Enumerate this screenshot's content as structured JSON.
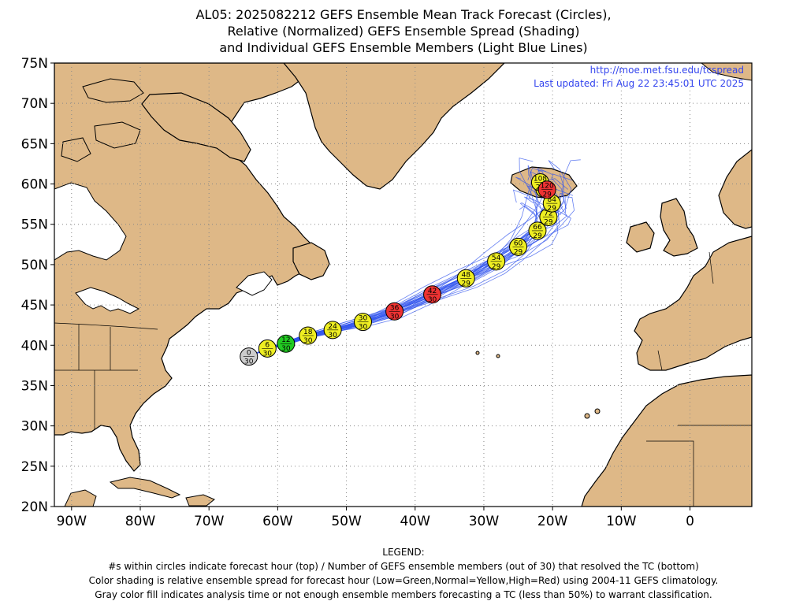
{
  "title": {
    "line1": "AL05: 2025082212 GEFS Ensemble Mean Track Forecast (Circles),",
    "line2": "Relative (Normalized) GEFS Ensemble Spread (Shading)",
    "line3": "and Individual GEFS Ensemble Members (Light Blue Lines)"
  },
  "credit": {
    "url": "http://moe.met.fsu.edu/tcspread",
    "updated": "Last updated: Fri Aug 22 23:45:01 UTC 2025"
  },
  "axes": {
    "lat_labels": [
      "75N",
      "70N",
      "65N",
      "60N",
      "55N",
      "50N",
      "45N",
      "40N",
      "35N",
      "30N",
      "25N",
      "20N"
    ],
    "lat_values": [
      75,
      70,
      65,
      60,
      55,
      50,
      45,
      40,
      35,
      30,
      25,
      20
    ],
    "lon_labels": [
      "90W",
      "80W",
      "70W",
      "60W",
      "50W",
      "40W",
      "30W",
      "20W",
      "10W",
      "0"
    ],
    "lon_values": [
      -90,
      -80,
      -70,
      -60,
      -50,
      -40,
      -30,
      -20,
      -10,
      0
    ],
    "lon_range": [
      -92.5,
      9
    ],
    "lat_range": [
      20,
      75
    ],
    "grid": true
  },
  "colors": {
    "land": "#deb887",
    "ocean": "#ffffff",
    "member_tracks": "#3355ee",
    "spread_low": "#22cc22",
    "spread_normal": "#eeee22",
    "spread_high": "#ee3333",
    "analysis_gray": "#cccccc"
  },
  "forecast_points": [
    {
      "hour": "0",
      "members": "30",
      "lon": -64.2,
      "lat": 38.6,
      "spread": "gray"
    },
    {
      "hour": "6",
      "members": "30",
      "lon": -61.5,
      "lat": 39.6,
      "spread": "yellow"
    },
    {
      "hour": "12",
      "members": "30",
      "lon": -58.8,
      "lat": 40.2,
      "spread": "green"
    },
    {
      "hour": "18",
      "members": "30",
      "lon": -55.6,
      "lat": 41.2,
      "spread": "yellow"
    },
    {
      "hour": "24",
      "members": "30",
      "lon": -52,
      "lat": 41.9,
      "spread": "yellow"
    },
    {
      "hour": "30",
      "members": "30",
      "lon": -47.6,
      "lat": 42.9,
      "spread": "yellow"
    },
    {
      "hour": "36",
      "members": "30",
      "lon": -43,
      "lat": 44.2,
      "spread": "red"
    },
    {
      "hour": "42",
      "members": "30",
      "lon": -37.5,
      "lat": 46.3,
      "spread": "red"
    },
    {
      "hour": "48",
      "members": "29",
      "lon": -32.6,
      "lat": 48.3,
      "spread": "yellow"
    },
    {
      "hour": "54",
      "members": "29",
      "lon": -28.2,
      "lat": 50.4,
      "spread": "yellow"
    },
    {
      "hour": "60",
      "members": "29",
      "lon": -25,
      "lat": 52.2,
      "spread": "yellow"
    },
    {
      "hour": "66",
      "members": "29",
      "lon": -22.2,
      "lat": 54.2,
      "spread": "yellow"
    },
    {
      "hour": "72",
      "members": "29",
      "lon": -20.6,
      "lat": 55.9,
      "spread": "yellow"
    },
    {
      "hour": "84",
      "members": "29",
      "lon": -20.1,
      "lat": 57.6,
      "spread": "yellow"
    },
    {
      "hour": "96",
      "members": "29",
      "lon": -21.2,
      "lat": 59.4,
      "spread": "yellow"
    },
    {
      "hour": "108",
      "members": "29",
      "lon": -21.8,
      "lat": 60.2,
      "spread": "yellow"
    },
    {
      "hour": "120",
      "members": "29",
      "lon": -20.8,
      "lat": 59.3,
      "spread": "red"
    }
  ],
  "legend": {
    "heading": "LEGEND:",
    "line1": "#s within circles indicate forecast hour (top) / Number of GEFS ensemble members (out of 30) that resolved the TC (bottom)",
    "line2": "Color shading is relative ensemble spread for forecast hour (Low=Green,Normal=Yellow,High=Red) using 2004-11 GEFS climatology.",
    "line3": "Gray color fill indicates analysis time or not enough ensemble members forecasting a TC (less than 50%) to warrant classification."
  }
}
